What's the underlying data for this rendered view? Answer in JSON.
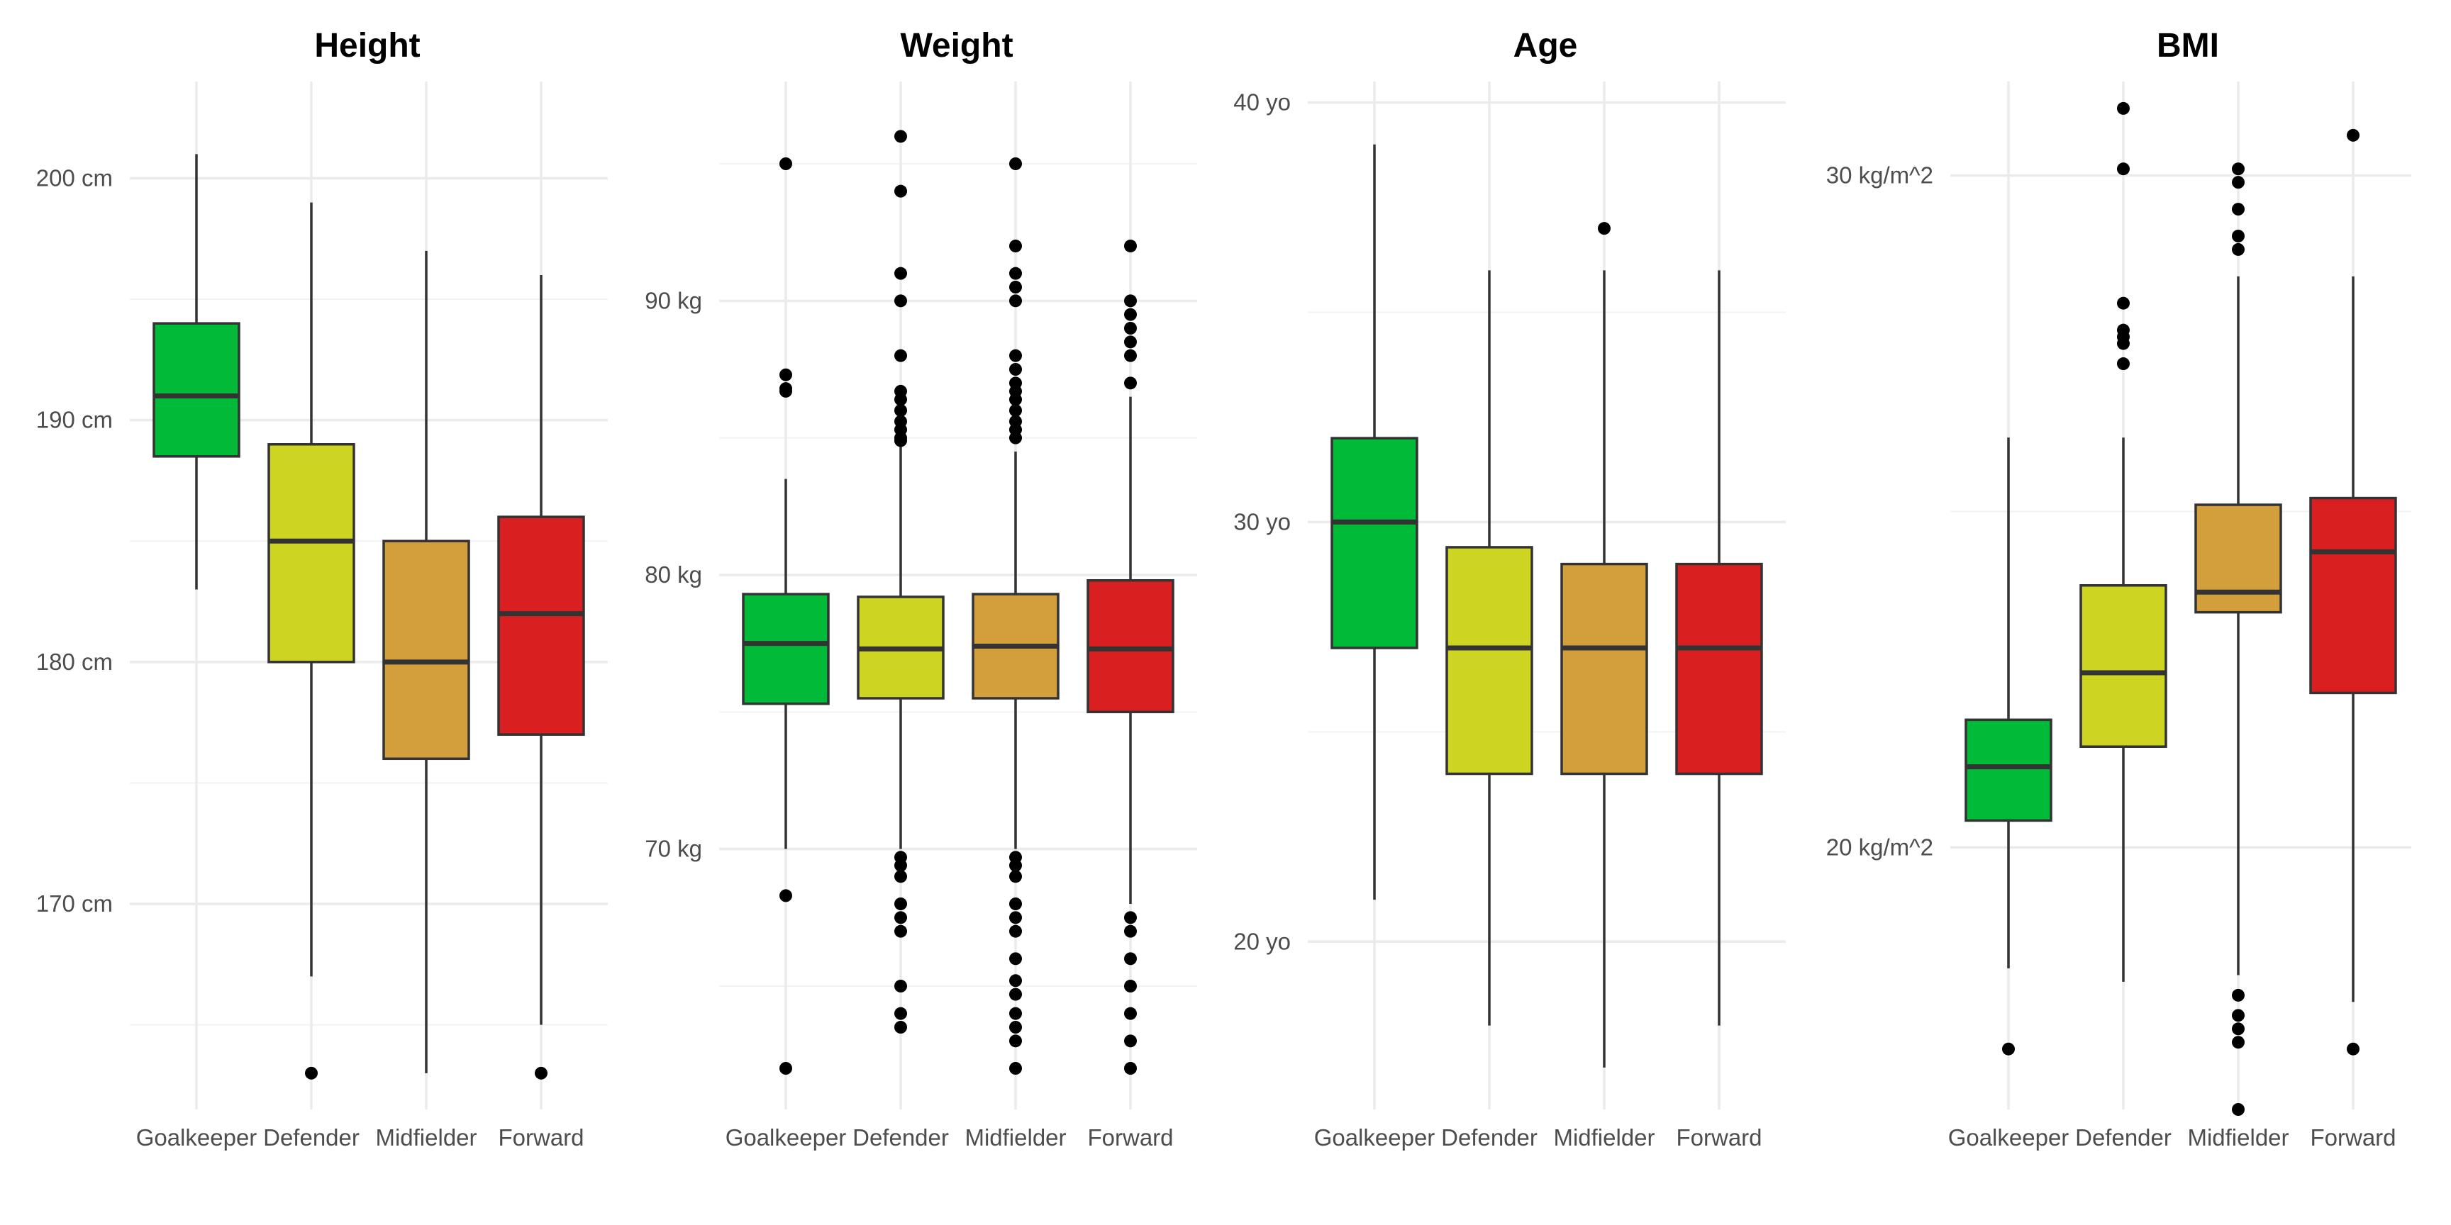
{
  "chart_data": [
    {
      "type": "boxplot",
      "title": "Height",
      "unit": "cm",
      "categories": [
        "Goalkeeper",
        "Defender",
        "Midfielder",
        "Forward"
      ],
      "ylim": [
        161.5,
        204
      ],
      "yticks": [
        {
          "value": 170,
          "label": "170 cm"
        },
        {
          "value": 180,
          "label": "180 cm"
        },
        {
          "value": 190,
          "label": "190 cm"
        },
        {
          "value": 200,
          "label": "200 cm"
        }
      ],
      "minor_yticks": [
        165,
        175,
        185,
        195
      ],
      "boxes": [
        {
          "category": "Goalkeeper",
          "whisker_low": 183,
          "q1": 188.5,
          "median": 191,
          "q3": 194,
          "whisker_high": 201,
          "outliers": []
        },
        {
          "category": "Defender",
          "whisker_low": 167,
          "q1": 180,
          "median": 185,
          "q3": 189,
          "whisker_high": 199,
          "outliers": [
            163
          ]
        },
        {
          "category": "Midfielder",
          "whisker_low": 163,
          "q1": 176,
          "median": 180,
          "q3": 185,
          "whisker_high": 197,
          "outliers": []
        },
        {
          "category": "Forward",
          "whisker_low": 165,
          "q1": 177,
          "median": 182,
          "q3": 186,
          "whisker_high": 196,
          "outliers": [
            163
          ]
        }
      ]
    },
    {
      "type": "boxplot",
      "title": "Weight",
      "unit": "kg",
      "categories": [
        "Goalkeeper",
        "Defender",
        "Midfielder",
        "Forward"
      ],
      "ylim": [
        60.5,
        98
      ],
      "yticks": [
        {
          "value": 70,
          "label": "70 kg"
        },
        {
          "value": 80,
          "label": "80 kg"
        },
        {
          "value": 90,
          "label": "90 kg"
        }
      ],
      "minor_yticks": [
        65,
        75,
        85,
        95
      ],
      "boxes": [
        {
          "category": "Goalkeeper",
          "whisker_low": 70,
          "q1": 75.3,
          "median": 77.5,
          "q3": 79.3,
          "whisker_high": 83.5,
          "outliers": [
            95,
            87.3,
            86.8,
            86.7,
            68.3,
            62
          ]
        },
        {
          "category": "Defender",
          "whisker_low": 70,
          "q1": 75.5,
          "median": 77.3,
          "q3": 79.2,
          "whisker_high": 84.7,
          "outliers": [
            96,
            94,
            91,
            90,
            88,
            86.7,
            86.4,
            86,
            85.6,
            85.3,
            85,
            84.9,
            69.7,
            69.4,
            69,
            68,
            67.5,
            67,
            65,
            64,
            63.5
          ]
        },
        {
          "category": "Midfielder",
          "whisker_low": 70,
          "q1": 75.5,
          "median": 77.4,
          "q3": 79.3,
          "whisker_high": 84.5,
          "outliers": [
            95,
            92,
            91,
            90.5,
            90,
            88,
            87.5,
            87,
            86.7,
            86.4,
            86,
            85.6,
            85.3,
            85,
            69.7,
            69.4,
            69,
            68,
            67.5,
            67,
            66,
            65.2,
            64.7,
            64,
            63.5,
            63,
            62
          ]
        },
        {
          "category": "Forward",
          "whisker_low": 68,
          "q1": 75,
          "median": 77.3,
          "q3": 79.8,
          "whisker_high": 86.5,
          "outliers": [
            92,
            90,
            89.5,
            89,
            88.5,
            88,
            87,
            67.5,
            67,
            66,
            65,
            64,
            63,
            62
          ]
        }
      ]
    },
    {
      "type": "boxplot",
      "title": "Age",
      "unit": "yo",
      "categories": [
        "Goalkeeper",
        "Defender",
        "Midfielder",
        "Forward"
      ],
      "ylim": [
        16,
        40.5
      ],
      "yticks": [
        {
          "value": 20,
          "label": "20 yo"
        },
        {
          "value": 30,
          "label": "30 yo"
        },
        {
          "value": 40,
          "label": "40 yo"
        }
      ],
      "minor_yticks": [
        25,
        35
      ],
      "boxes": [
        {
          "category": "Goalkeeper",
          "whisker_low": 21,
          "q1": 27,
          "median": 30,
          "q3": 32,
          "whisker_high": 39,
          "outliers": []
        },
        {
          "category": "Defender",
          "whisker_low": 18,
          "q1": 24,
          "median": 27,
          "q3": 29.4,
          "whisker_high": 36,
          "outliers": []
        },
        {
          "category": "Midfielder",
          "whisker_low": 17,
          "q1": 24,
          "median": 27,
          "q3": 29,
          "whisker_high": 36,
          "outliers": [
            37
          ]
        },
        {
          "category": "Forward",
          "whisker_low": 18,
          "q1": 24,
          "median": 27,
          "q3": 29,
          "whisker_high": 36,
          "outliers": []
        }
      ]
    },
    {
      "type": "boxplot",
      "title": "BMI",
      "unit": "kg/m^2",
      "categories": [
        "Goalkeeper",
        "Defender",
        "Midfielder",
        "Forward"
      ],
      "ylim": [
        16.1,
        31.4
      ],
      "yticks": [
        {
          "value": 20,
          "label": "20 kg/m^2"
        },
        {
          "value": 30,
          "label": "30 kg/m^2"
        }
      ],
      "minor_yticks": [
        25
      ],
      "boxes": [
        {
          "category": "Goalkeeper",
          "whisker_low": 18.2,
          "q1": 20.4,
          "median": 21.2,
          "q3": 21.9,
          "whisker_high": 26.1,
          "outliers": [
            17
          ]
        },
        {
          "category": "Defender",
          "whisker_low": 18,
          "q1": 21.5,
          "median": 22.6,
          "q3": 23.9,
          "whisker_high": 26.1,
          "outliers": [
            31,
            30.1,
            28.1,
            27.7,
            27.6,
            27.5,
            27.2
          ]
        },
        {
          "category": "Midfielder",
          "whisker_low": 18.1,
          "q1": 23.5,
          "median": 23.8,
          "q3": 25.1,
          "whisker_high": 28.5,
          "outliers": [
            30.1,
            29.9,
            29.5,
            29.1,
            28.9,
            17.8,
            17.5,
            17.3,
            17.1,
            16.1
          ]
        },
        {
          "category": "Forward",
          "whisker_low": 17.7,
          "q1": 22.3,
          "median": 24.4,
          "q3": 25.2,
          "whisker_high": 28.5,
          "outliers": [
            30.6,
            17
          ]
        }
      ]
    }
  ],
  "colors": {
    "Goalkeeper": "#00BA38",
    "Defender": "#CDD422",
    "Midfielder": "#D39E3C",
    "Forward": "#D91F1F"
  }
}
